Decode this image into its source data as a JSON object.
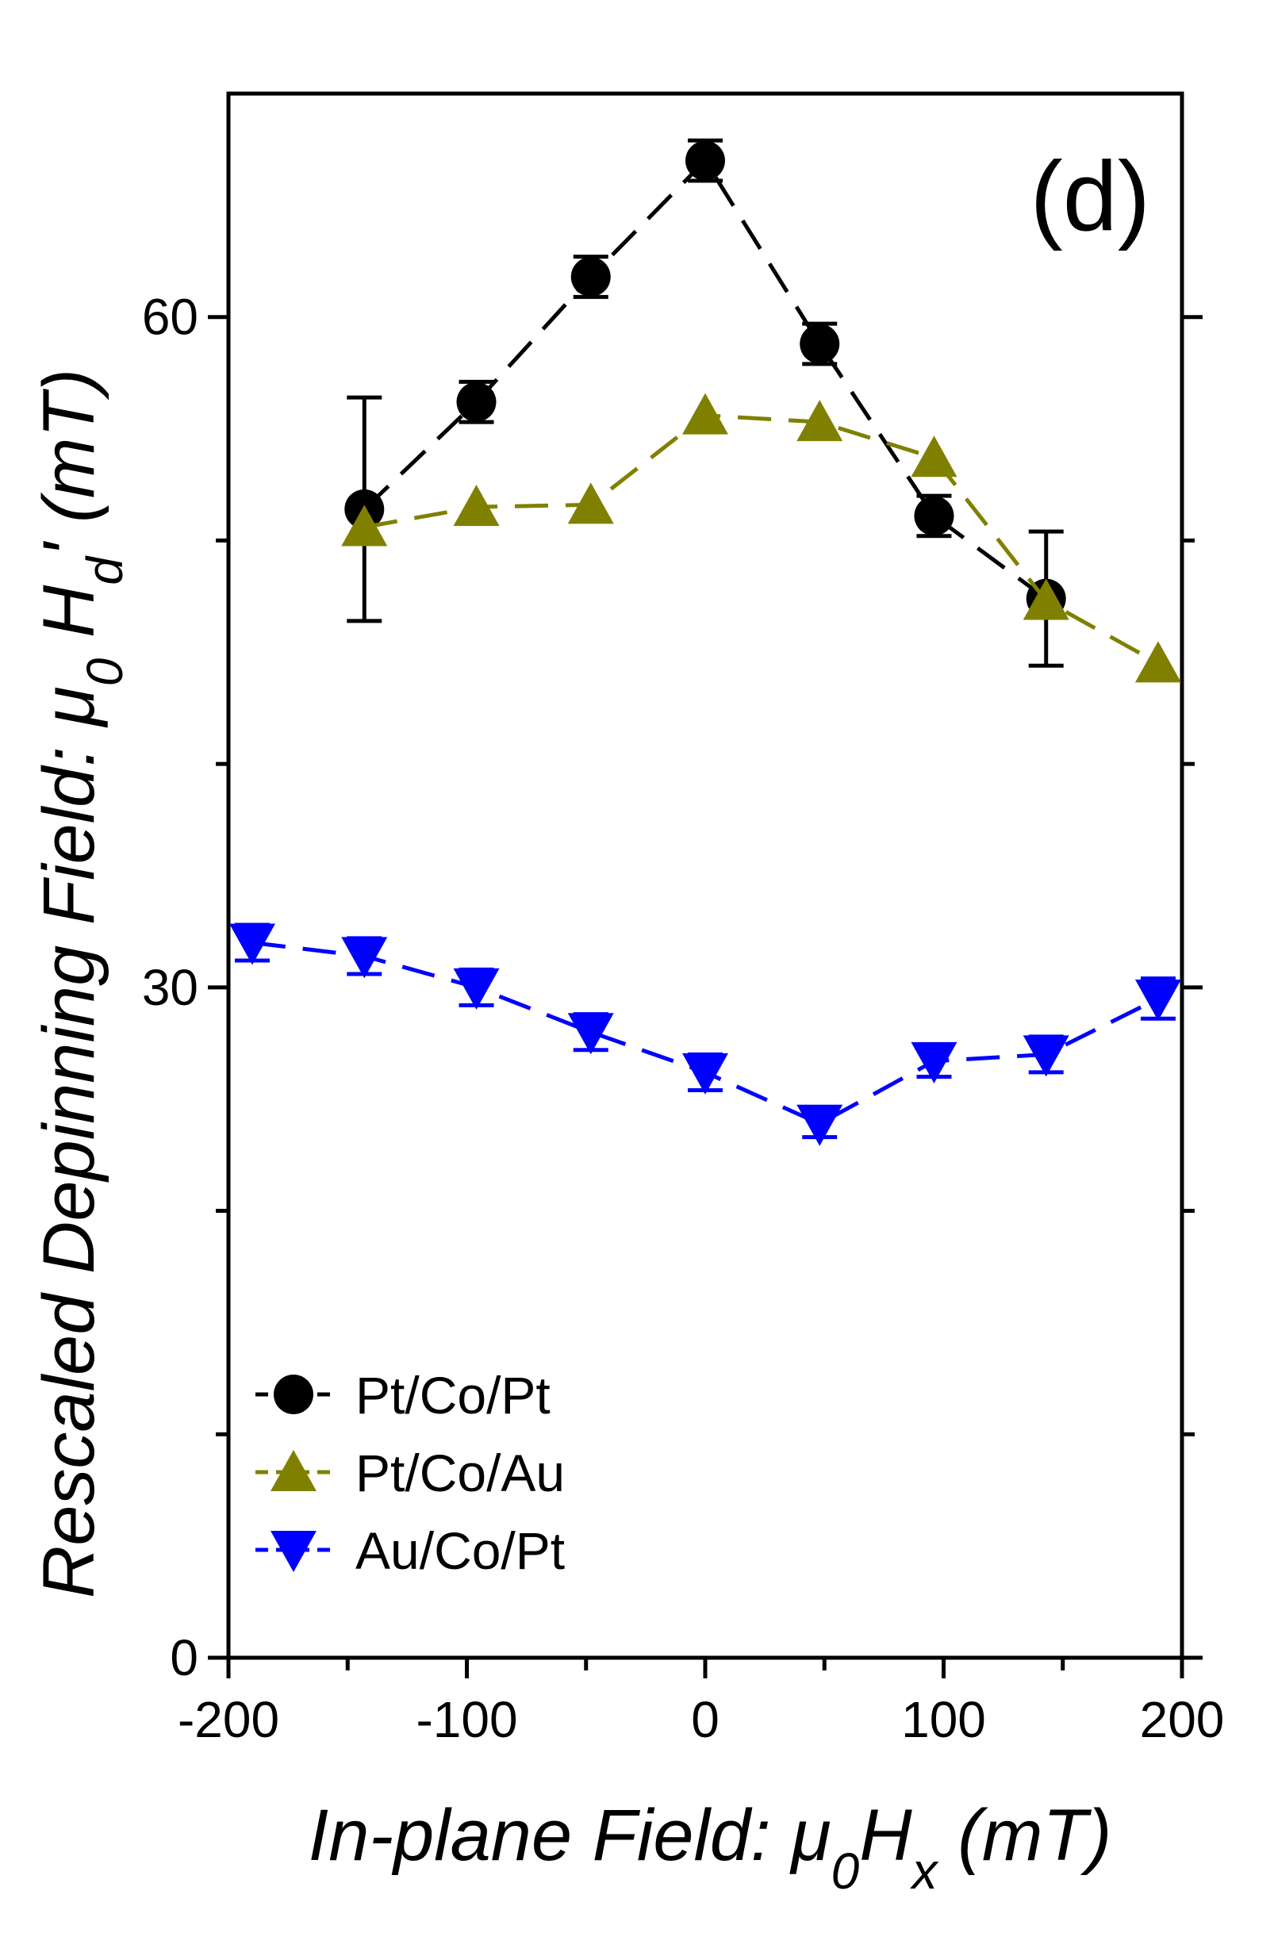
{
  "chart_data": {
    "type": "line",
    "panel_label": "(d)",
    "xlabel": "In-plane Field: μ0Hx (mT)",
    "xlabel_parts": {
      "prefix": "In-plane Field: μ",
      "sub1": "0",
      "mid": "H",
      "sub2": "x",
      "suffix": " (mT)"
    },
    "ylabel": "Rescaled Depinning Field: μ0 Hd' (mT)",
    "ylabel_parts": {
      "prefix": "Rescaled Depinning Field: μ",
      "sub1": "0",
      "mid": " H",
      "sub2": "d",
      "suffix": "' (mT)"
    },
    "xlim": [
      -200,
      200
    ],
    "ylim": [
      0,
      70
    ],
    "x_ticks": [
      -200,
      -100,
      0,
      100,
      200
    ],
    "x_tick_labels": [
      "-200",
      "-100",
      "0",
      "100",
      "200"
    ],
    "x_minor_ticks": [
      -150,
      -50,
      50,
      150
    ],
    "y_ticks": [
      0,
      30,
      60
    ],
    "y_tick_labels": [
      "0",
      "30",
      "60"
    ],
    "y_minor_ticks": [
      10,
      20,
      40,
      50
    ],
    "legend_position": "bottom-left",
    "series": [
      {
        "name": "Pt/Co/Pt",
        "marker": "circle",
        "color": "#000000",
        "x": [
          -143,
          -96,
          -48,
          0,
          48,
          96,
          143
        ],
        "y": [
          51.4,
          56.2,
          61.8,
          67.0,
          58.8,
          51.1,
          47.4
        ],
        "err": [
          5.0,
          0.9,
          0.9,
          0.9,
          0.9,
          0.9,
          3.0
        ]
      },
      {
        "name": "Pt/Co/Au",
        "marker": "triangle-up",
        "color": "#808000",
        "x": [
          -143,
          -96,
          -48,
          0,
          48,
          96,
          143,
          190
        ],
        "y": [
          50.6,
          51.5,
          51.6,
          55.6,
          55.3,
          53.7,
          47.3,
          44.5
        ],
        "err": [
          0,
          0,
          0,
          0,
          0,
          0,
          0,
          0
        ]
      },
      {
        "name": "Au/Co/Pt",
        "marker": "triangle-down",
        "color": "#0000ff",
        "x": [
          -190,
          -143,
          -96,
          -48,
          0,
          48,
          96,
          143,
          190
        ],
        "y": [
          32.0,
          31.4,
          30.0,
          28.0,
          26.2,
          23.9,
          26.7,
          27.0,
          29.5
        ],
        "err": [
          0.8,
          0.8,
          0.8,
          0.8,
          0.8,
          0.6,
          0.7,
          0.8,
          0.9
        ]
      }
    ]
  }
}
